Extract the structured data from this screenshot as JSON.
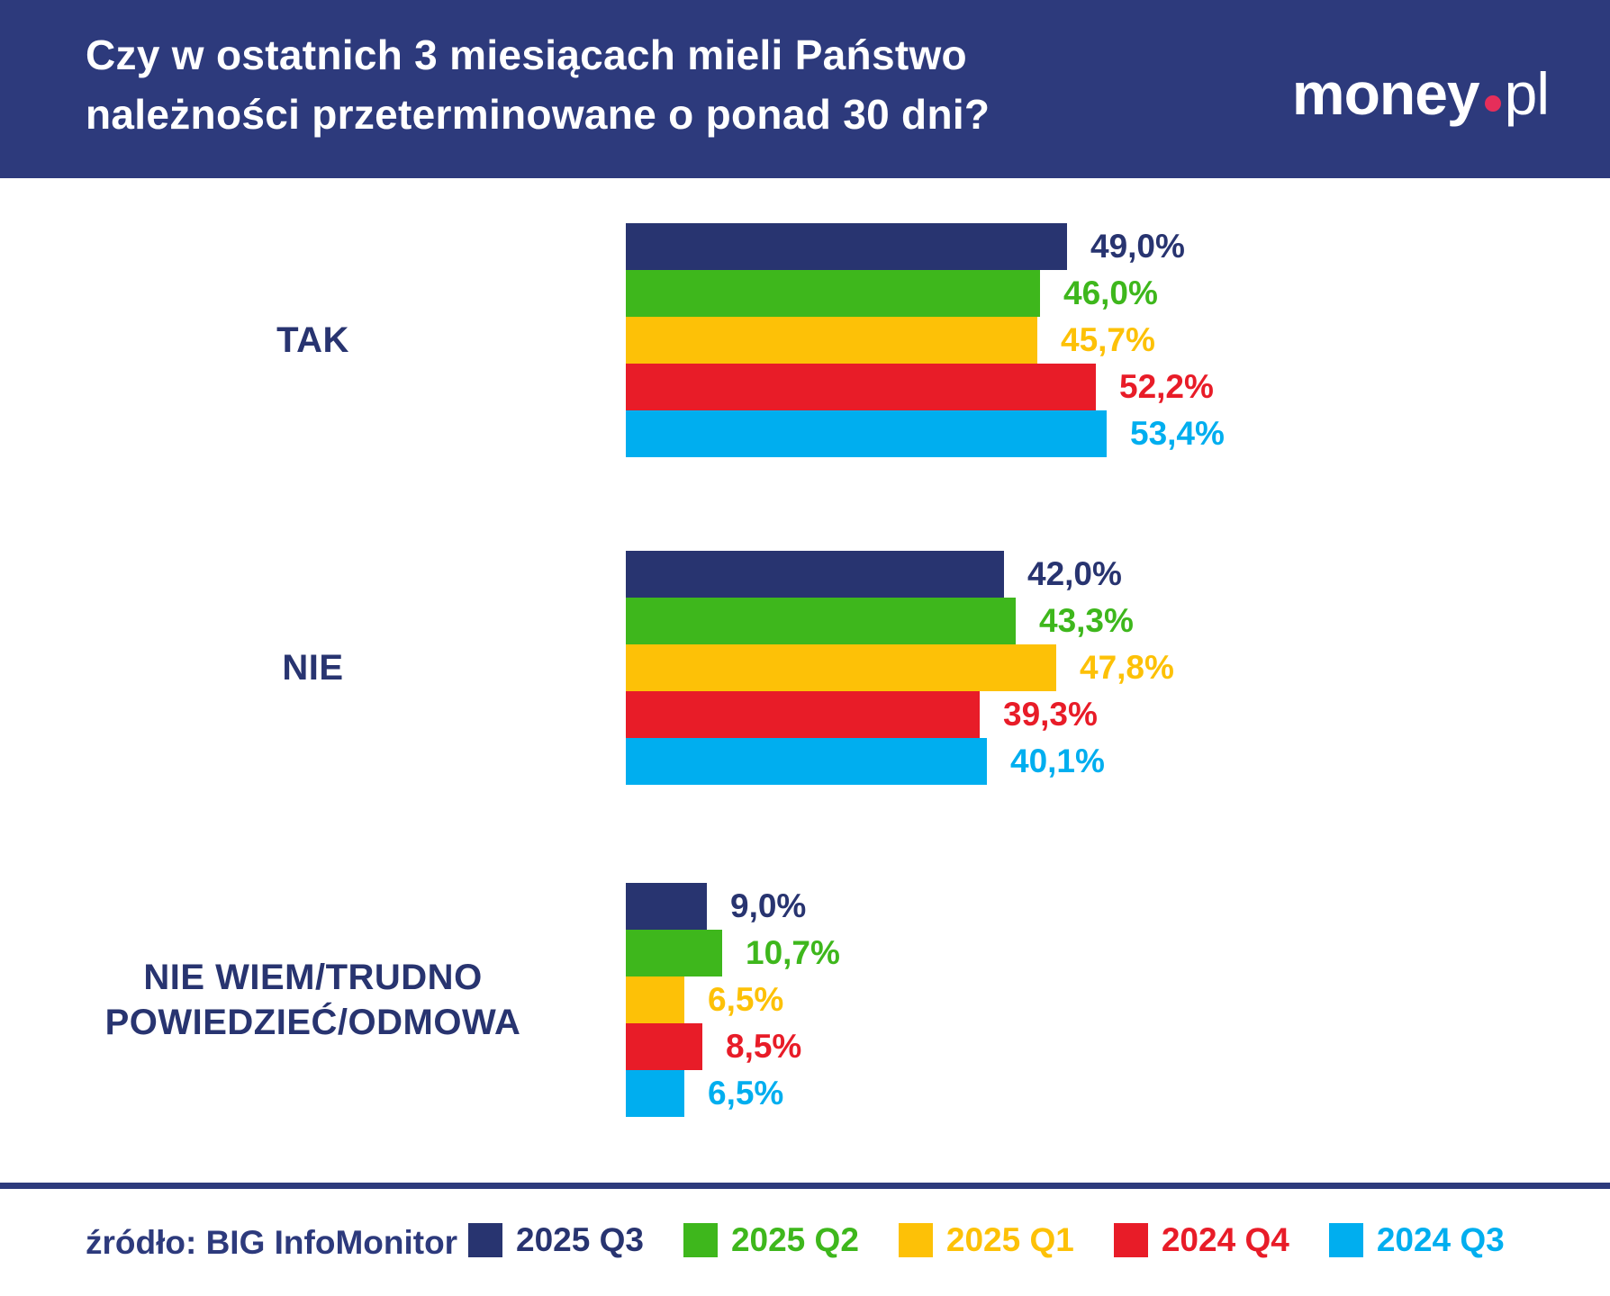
{
  "header": {
    "title_line1": "Czy w ostatnich 3 miesiącach mieli Państwo",
    "title_line2": "należności przeterminowane o ponad 30 dni?",
    "logo": {
      "part1": "money",
      "part2": "pl",
      "dot_color": "#e62e5a"
    }
  },
  "colors": {
    "header_background": "#2d3a7c",
    "page_background": "#ffffff",
    "category_label": "#283470",
    "separator": "#2d3a7c",
    "source_text": "#2d3a7c"
  },
  "chart_data": {
    "type": "bar",
    "orientation": "horizontal",
    "unit": "%",
    "decimal_separator": ",",
    "value_axis_max": 60,
    "grid": false,
    "legend_position": "bottom",
    "series_names": [
      "2025 Q3",
      "2025 Q2",
      "2025 Q1",
      "2024 Q4",
      "2024 Q3"
    ],
    "series_colors": [
      "#283470",
      "#3eb71c",
      "#fdc107",
      "#e81c28",
      "#00aeef"
    ],
    "groups": [
      {
        "category": "TAK",
        "label_lines": [
          "TAK"
        ],
        "values": [
          49.0,
          46.0,
          45.7,
          52.2,
          53.4
        ],
        "display_values": [
          "49,0%",
          "46,0%",
          "45,7%",
          "52,2%",
          "53,4%"
        ]
      },
      {
        "category": "NIE",
        "label_lines": [
          "NIE"
        ],
        "values": [
          42.0,
          43.3,
          47.8,
          39.3,
          40.1
        ],
        "display_values": [
          "42,0%",
          "43,3%",
          "47,8%",
          "39,3%",
          "40,1%"
        ]
      },
      {
        "category": "NIE WIEM/TRUDNO POWIEDZIEĆ/ODMOWA",
        "label_lines": [
          "NIE WIEM/TRUDNO",
          "POWIEDZIEĆ/ODMOWA"
        ],
        "values": [
          9.0,
          10.7,
          6.5,
          8.5,
          6.5
        ],
        "display_values": [
          "9,0%",
          "10,7%",
          "6,5%",
          "8,5%",
          "6,5%"
        ]
      }
    ]
  },
  "footer": {
    "source": "źródło: BIG InfoMonitor"
  }
}
